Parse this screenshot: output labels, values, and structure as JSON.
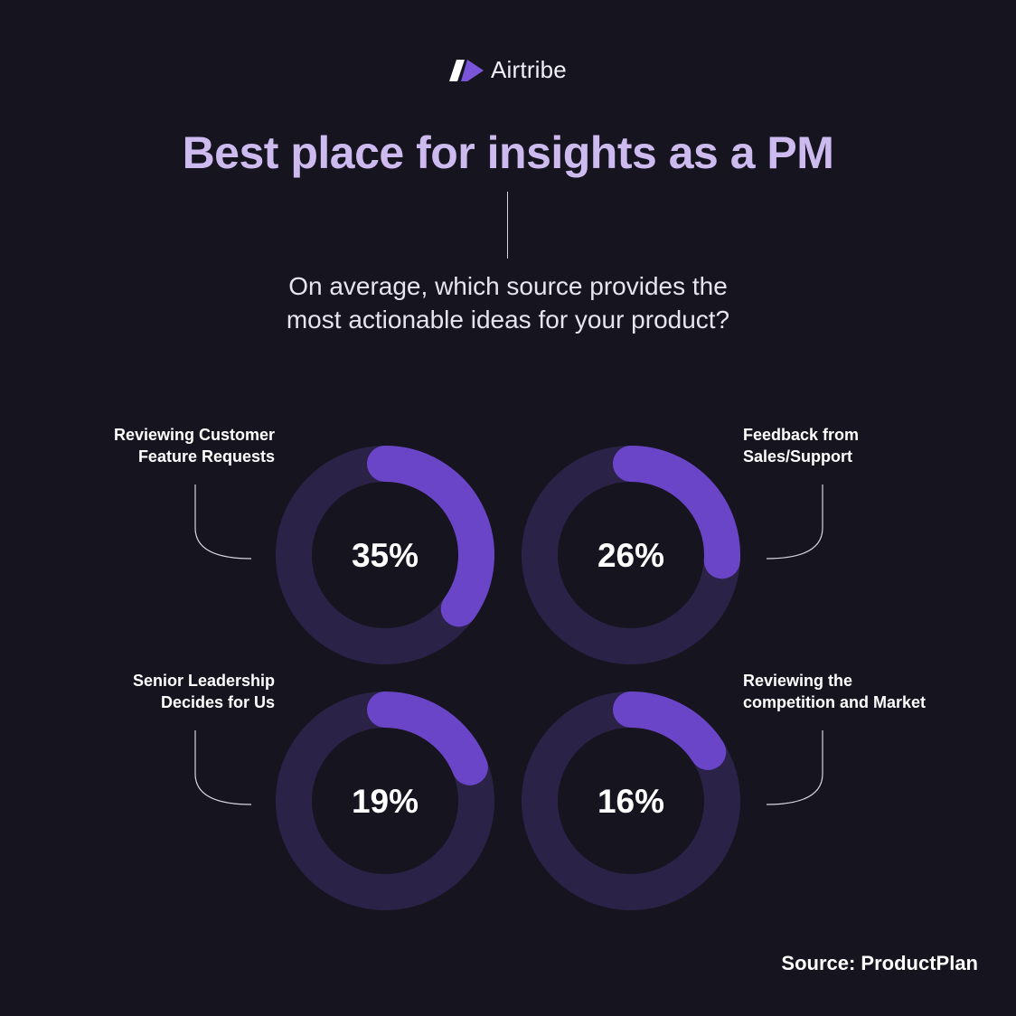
{
  "brand": {
    "name": "Airtribe",
    "logo_icon": "airtribe-logo-icon"
  },
  "header": {
    "title": "Best place for insights as a PM"
  },
  "question": {
    "line1": "On average, which source provides the",
    "line2": "most actionable ideas for your product?"
  },
  "colors": {
    "background": "#16141f",
    "ring_track": "#2b2248",
    "ring_fill": "#6b45c8",
    "title": "#cdbbf0"
  },
  "chart_data": {
    "type": "pie",
    "title": "Best place for insights as a PM",
    "subtitle": "On average, which source provides the most actionable ideas for your product?",
    "categories": [
      "Reviewing Customer Feature Requests",
      "Feedback from Sales/Support",
      "Senior Leadership Decides for Us",
      "Reviewing the competition and Market"
    ],
    "values": [
      35,
      26,
      19,
      16
    ],
    "unit": "%",
    "items": [
      {
        "label_lines": [
          "Reviewing Customer",
          "Feature Requests"
        ],
        "value": 35,
        "display": "35%",
        "label_side": "left"
      },
      {
        "label_lines": [
          "Feedback from",
          "Sales/Support"
        ],
        "value": 26,
        "display": "26%",
        "label_side": "right"
      },
      {
        "label_lines": [
          "Senior Leadership",
          "Decides for Us"
        ],
        "value": 19,
        "display": "19%",
        "label_side": "left"
      },
      {
        "label_lines": [
          "Reviewing the",
          "competition and Market"
        ],
        "value": 16,
        "display": "16%",
        "label_side": "right"
      }
    ]
  },
  "footer": {
    "source": "Source: ProductPlan"
  }
}
